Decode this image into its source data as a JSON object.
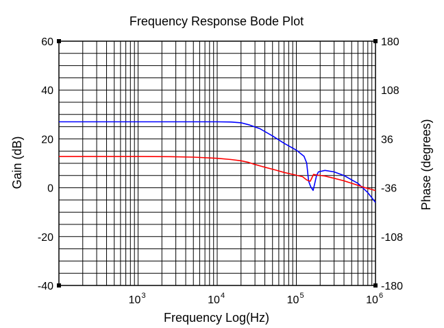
{
  "chart_data": {
    "type": "line",
    "title": "Frequency Response Bode Plot",
    "xlabel": "Frequency Log(Hz)",
    "ylabel_left": "Gain (dB)",
    "ylabel_right": "Phase (degrees)",
    "x_scale": "log",
    "xlim": [
      100,
      1000000
    ],
    "ylim_left": [
      -40,
      60
    ],
    "ylim_right": [
      -180,
      180
    ],
    "x_ticks": [
      {
        "base": "10",
        "exp": "3",
        "value": 1000
      },
      {
        "base": "10",
        "exp": "4",
        "value": 10000
      },
      {
        "base": "10",
        "exp": "5",
        "value": 100000
      },
      {
        "base": "10",
        "exp": "6",
        "value": 1000000
      }
    ],
    "y_ticks_left": [
      "60",
      "40",
      "20",
      "0",
      "-20",
      "-40"
    ],
    "y_ticks_right": [
      "180",
      "108",
      "36",
      "-36",
      "-108",
      "-180"
    ],
    "grid": true,
    "series": [
      {
        "axis": "left",
        "color": "#0000ff",
        "points": [
          [
            100,
            27
          ],
          [
            10000,
            27
          ],
          [
            15000,
            26.9
          ],
          [
            20000,
            26.6
          ],
          [
            25000,
            25.8
          ],
          [
            35000,
            24.1
          ],
          [
            50000,
            21.2
          ],
          [
            70000,
            18.2
          ],
          [
            100000,
            15.4
          ],
          [
            125000,
            12.9
          ],
          [
            135000,
            10.1
          ],
          [
            143000,
            2.7
          ],
          [
            152000,
            0.4
          ],
          [
            163000,
            -1.1
          ],
          [
            180000,
            5
          ],
          [
            190000,
            6.5
          ],
          [
            230000,
            7.1
          ],
          [
            300000,
            6.5
          ],
          [
            400000,
            5
          ],
          [
            600000,
            1.8
          ],
          [
            800000,
            -2
          ],
          [
            1000000,
            -6
          ]
        ]
      },
      {
        "axis": "right",
        "color": "#ff0000",
        "points": [
          [
            100,
            10
          ],
          [
            1000,
            10
          ],
          [
            2500,
            9.8
          ],
          [
            5000,
            9.1
          ],
          [
            10000,
            7.4
          ],
          [
            15000,
            5.6
          ],
          [
            20000,
            3.7
          ],
          [
            25000,
            1.3
          ],
          [
            30000,
            -1.7
          ],
          [
            40000,
            -5.8
          ],
          [
            55000,
            -10
          ],
          [
            70000,
            -13.4
          ],
          [
            100000,
            -17.6
          ],
          [
            120000,
            -19.7
          ],
          [
            135000,
            -24.5
          ],
          [
            150000,
            -26.4
          ],
          [
            165000,
            -16.3
          ],
          [
            180000,
            -17.2
          ],
          [
            230000,
            -18.8
          ],
          [
            300000,
            -22
          ],
          [
            400000,
            -25.8
          ],
          [
            550000,
            -30.9
          ],
          [
            700000,
            -35.2
          ],
          [
            900000,
            -38.5
          ],
          [
            1000000,
            -40.2
          ]
        ]
      }
    ]
  },
  "colors": {
    "grid": "#000000",
    "gain_label": "#0000ff",
    "phase_label": "#ff0000"
  }
}
